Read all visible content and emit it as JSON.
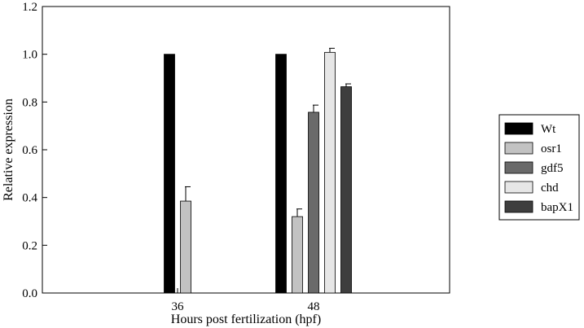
{
  "chart_data": {
    "type": "bar",
    "title": "",
    "xlabel": "Hours post fertilization (hpf)",
    "ylabel": "Relative expression",
    "ylim": [
      0,
      1.2
    ],
    "yticks": [
      "0.0",
      "0.2",
      "0.4",
      "0.6",
      "0.8",
      "1.0",
      "1.2"
    ],
    "categories": [
      "36",
      "48"
    ],
    "legend_position": "right",
    "grid": false,
    "series": [
      {
        "name": "Wt",
        "color": "#000000",
        "values": [
          1.0,
          1.0
        ],
        "errors": [
          0,
          0
        ]
      },
      {
        "name": "osr1",
        "color": "#c2c2c2",
        "values": [
          0.385,
          0.32
        ],
        "errors": [
          0.06,
          0.032
        ]
      },
      {
        "name": "gdf5",
        "color": "#6a6a6a",
        "values": [
          null,
          0.757
        ],
        "errors": [
          0,
          0.03
        ]
      },
      {
        "name": "chd",
        "color": "#e6e6e6",
        "values": [
          null,
          1.008
        ],
        "errors": [
          0,
          0.017
        ]
      },
      {
        "name": "bapX1",
        "color": "#3e3e3e",
        "values": [
          null,
          0.864
        ],
        "errors": [
          0,
          0.012
        ]
      }
    ]
  }
}
